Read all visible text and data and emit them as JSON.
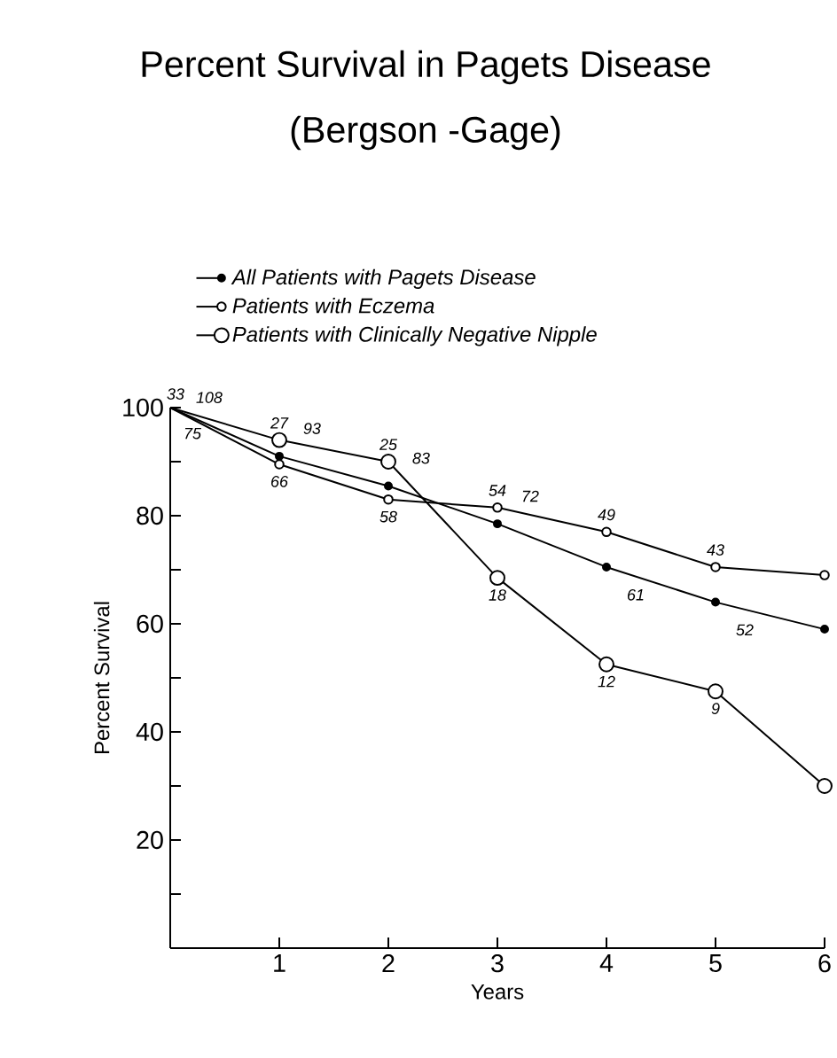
{
  "chart_data": {
    "type": "line",
    "title": "Percent Survival in Pagets Disease",
    "subtitle": "(Bergson -Gage)",
    "xlabel": "Years",
    "ylabel": "Percent Survival",
    "x": [
      0,
      1,
      2,
      3,
      4,
      5,
      6
    ],
    "series": [
      {
        "name": "All Patients with Pagets Disease",
        "color": "#000000",
        "values": [
          100,
          91,
          85.5,
          78.5,
          70.5,
          64,
          59
        ]
      },
      {
        "name": "Patients with Eczema",
        "color": "#000000",
        "values": [
          100,
          89.5,
          83,
          81.5,
          77,
          70.5,
          69
        ]
      },
      {
        "name": "Patients with Clinically Negative Nipple",
        "color": "#000000",
        "values": [
          100,
          94,
          90,
          68.5,
          52.5,
          47.5,
          30
        ]
      }
    ],
    "xlim": [
      0,
      6
    ],
    "ylim": [
      0,
      100
    ],
    "xticks": [
      1,
      2,
      3,
      4,
      5,
      6
    ],
    "yticks": [
      {
        "value": 10,
        "label": null
      },
      20,
      {
        "value": 30,
        "label": null
      },
      40,
      {
        "value": 50,
        "label": null
      },
      60,
      {
        "value": 70,
        "label": null
      },
      80,
      {
        "value": 90,
        "label": null
      },
      100
    ],
    "annotations": [
      {
        "text": "33",
        "x": 0,
        "y": 100
      },
      {
        "text": "108",
        "x": 0,
        "y": 100
      },
      {
        "text": "75",
        "x": 0,
        "y": 100
      },
      {
        "text": "27",
        "x": 1,
        "y": 94
      },
      {
        "text": "93",
        "x": 1,
        "y": 91
      },
      {
        "text": "66",
        "x": 1,
        "y": 89.5
      },
      {
        "text": "25",
        "x": 2,
        "y": 90
      },
      {
        "text": "83",
        "x": 2,
        "y": 85.5
      },
      {
        "text": "58",
        "x": 2,
        "y": 83
      },
      {
        "text": "54",
        "x": 3,
        "y": 81.5
      },
      {
        "text": "72",
        "x": 3,
        "y": 78.5
      },
      {
        "text": "18",
        "x": 3,
        "y": 68.5
      },
      {
        "text": "49",
        "x": 4,
        "y": 77
      },
      {
        "text": "61",
        "x": 4,
        "y": 70.5
      },
      {
        "text": "12",
        "x": 4,
        "y": 52.5
      },
      {
        "text": "43",
        "x": 5,
        "y": 70.5
      },
      {
        "text": "52",
        "x": 5,
        "y": 64
      },
      {
        "text": "9",
        "x": 5,
        "y": 47.5
      }
    ],
    "legend": "top",
    "marker": "circle",
    "line_style": "solid",
    "grid": false
  }
}
